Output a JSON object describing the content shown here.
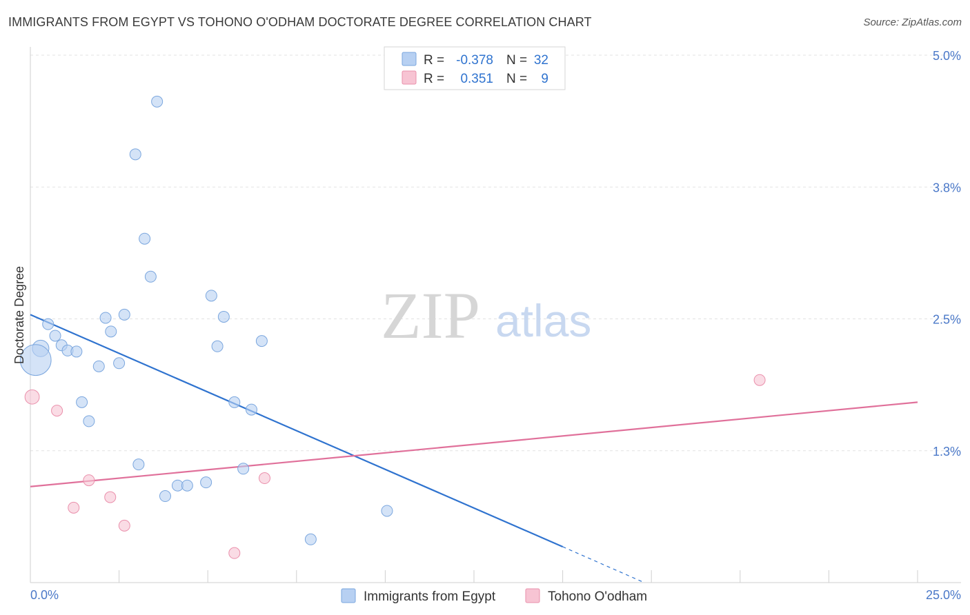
{
  "title": "IMMIGRANTS FROM EGYPT VS TOHONO O'ODHAM DOCTORATE DEGREE CORRELATION CHART",
  "source": "Source: ZipAtlas.com",
  "watermark": {
    "zip": "ZIP",
    "atlas": "atlas"
  },
  "colors": {
    "blue_fill": "#b7d0f2",
    "blue_stroke": "#7aa6de",
    "blue_line": "#2f73cf",
    "pink_fill": "#f7c4d3",
    "pink_stroke": "#ea8fab",
    "pink_line": "#e0709a",
    "grid": "#e2e2e2",
    "axis_text": "#4a78c8"
  },
  "legend": {
    "rows": [
      {
        "r_label": "R =",
        "r_value": "-0.378",
        "n_label": "N =",
        "n_value": "32"
      },
      {
        "r_label": "R =",
        "r_value": "0.351",
        "n_label": "N =",
        "n_value": "9"
      }
    ]
  },
  "chart_data": {
    "type": "scatter",
    "title": "IMMIGRANTS FROM EGYPT VS TOHONO O'ODHAM DOCTORATE DEGREE CORRELATION CHART",
    "xlabel": "",
    "ylabel": "Doctorate Degree",
    "xlim": [
      0,
      25
    ],
    "ylim": [
      0.0,
      5.0
    ],
    "x_tick_labels": [
      "0.0%",
      "25.0%"
    ],
    "y_ticks": [
      1.25,
      2.5,
      3.75,
      5.0
    ],
    "y_tick_labels": [
      "1.3%",
      "2.5%",
      "3.8%",
      "5.0%"
    ],
    "grid": true,
    "series": [
      {
        "name": "Immigrants from Egypt",
        "color": "blue",
        "points": [
          {
            "x": 3.57,
            "y": 4.56,
            "s": 1
          },
          {
            "x": 2.96,
            "y": 4.06,
            "s": 1
          },
          {
            "x": 3.22,
            "y": 3.26,
            "s": 1
          },
          {
            "x": 3.39,
            "y": 2.9,
            "s": 1
          },
          {
            "x": 5.1,
            "y": 2.72,
            "s": 1
          },
          {
            "x": 2.65,
            "y": 2.54,
            "s": 1
          },
          {
            "x": 2.12,
            "y": 2.51,
            "s": 1
          },
          {
            "x": 5.45,
            "y": 2.52,
            "s": 1
          },
          {
            "x": 0.5,
            "y": 2.45,
            "s": 1
          },
          {
            "x": 0.7,
            "y": 2.34,
            "s": 1
          },
          {
            "x": 2.27,
            "y": 2.38,
            "s": 1
          },
          {
            "x": 0.88,
            "y": 2.25,
            "s": 1
          },
          {
            "x": 0.29,
            "y": 2.22,
            "s": 1.5
          },
          {
            "x": 1.05,
            "y": 2.2,
            "s": 1
          },
          {
            "x": 1.3,
            "y": 2.19,
            "s": 1
          },
          {
            "x": 6.52,
            "y": 2.29,
            "s": 1
          },
          {
            "x": 5.27,
            "y": 2.24,
            "s": 1
          },
          {
            "x": 2.5,
            "y": 2.08,
            "s": 1
          },
          {
            "x": 1.93,
            "y": 2.05,
            "s": 1
          },
          {
            "x": 0.15,
            "y": 2.11,
            "s": 2.8
          },
          {
            "x": 1.45,
            "y": 1.71,
            "s": 1
          },
          {
            "x": 5.75,
            "y": 1.71,
            "s": 1
          },
          {
            "x": 6.23,
            "y": 1.64,
            "s": 1
          },
          {
            "x": 1.65,
            "y": 1.53,
            "s": 1
          },
          {
            "x": 3.05,
            "y": 1.12,
            "s": 1
          },
          {
            "x": 6.0,
            "y": 1.08,
            "s": 1
          },
          {
            "x": 4.95,
            "y": 0.95,
            "s": 1
          },
          {
            "x": 4.15,
            "y": 0.92,
            "s": 1
          },
          {
            "x": 4.42,
            "y": 0.92,
            "s": 1
          },
          {
            "x": 3.8,
            "y": 0.82,
            "s": 1
          },
          {
            "x": 10.05,
            "y": 0.68,
            "s": 1
          },
          {
            "x": 7.9,
            "y": 0.41,
            "s": 1
          }
        ],
        "trendline": {
          "x": [
            0,
            15
          ],
          "y": [
            2.54,
            0.34
          ],
          "dashed_extension": {
            "x": [
              15,
              17.3
            ],
            "y": [
              0.34,
              0.0
            ]
          }
        }
      },
      {
        "name": "Tohono O'odham",
        "color": "pink",
        "points": [
          {
            "x": 0.05,
            "y": 1.76,
            "s": 1.3
          },
          {
            "x": 0.75,
            "y": 1.63,
            "s": 1
          },
          {
            "x": 20.55,
            "y": 1.92,
            "s": 1
          },
          {
            "x": 1.65,
            "y": 0.97,
            "s": 1
          },
          {
            "x": 6.6,
            "y": 0.99,
            "s": 1
          },
          {
            "x": 2.25,
            "y": 0.81,
            "s": 1
          },
          {
            "x": 1.22,
            "y": 0.71,
            "s": 1
          },
          {
            "x": 2.65,
            "y": 0.54,
            "s": 1
          },
          {
            "x": 5.75,
            "y": 0.28,
            "s": 1
          }
        ],
        "trendline": {
          "x": [
            0,
            25
          ],
          "y": [
            0.91,
            1.71
          ]
        }
      }
    ]
  },
  "bottom_legend": [
    {
      "label": "Immigrants from Egypt",
      "color": "blue"
    },
    {
      "label": "Tohono O'odham",
      "color": "pink"
    }
  ]
}
